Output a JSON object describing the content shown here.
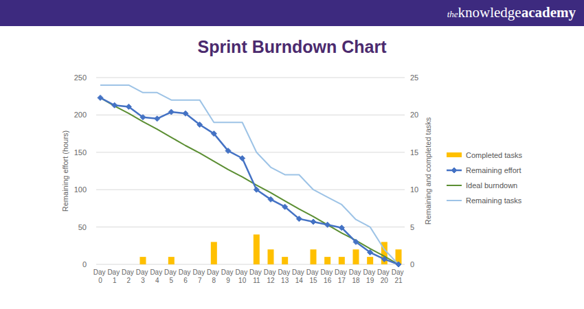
{
  "header": {
    "logo": [
      "the",
      "knowledge",
      "academy"
    ]
  },
  "chart_data": {
    "type": "line",
    "title": "Sprint Burndown Chart",
    "ylabel": "Remaining effort (hours)",
    "y2label": "Remaining and completed tasks",
    "categories": [
      "Day 0",
      "Day 1",
      "Day 2",
      "Day 3",
      "Day 4",
      "Day 5",
      "Day 6",
      "Day 7",
      "Day 8",
      "Day 9",
      "Day 10",
      "Day 11",
      "Day 12",
      "Day 13",
      "Day 14",
      "Day 15",
      "Day 16",
      "Day 17",
      "Day 18",
      "Day 19",
      "Day 20",
      "Day 21"
    ],
    "ylim": [
      0,
      250
    ],
    "yticks": [
      0,
      50,
      100,
      150,
      200,
      250
    ],
    "y2lim": [
      0,
      25
    ],
    "y2ticks": [
      0,
      5,
      10,
      15,
      20,
      25
    ],
    "grid": true,
    "legend": "right",
    "series": [
      {
        "name": "Completed tasks",
        "type": "bar",
        "axis": "y2",
        "color": "#ffc000",
        "values": [
          0,
          0,
          0,
          1,
          0,
          1,
          0,
          0,
          3,
          0,
          0,
          4,
          2,
          1,
          0,
          2,
          1,
          1,
          2,
          1,
          3,
          2
        ]
      },
      {
        "name": "Remaining effort",
        "type": "line",
        "color": "#4472c4",
        "marker": "diamond",
        "line_style": "solid",
        "values": [
          223,
          213,
          211,
          197,
          195,
          204,
          202,
          187,
          175,
          152,
          142,
          100,
          87,
          77,
          61,
          57,
          53,
          49,
          30,
          16,
          7,
          0
        ]
      },
      {
        "name": "Ideal burndown",
        "type": "line",
        "color": "#5b8e32",
        "line_style": "solid",
        "values": [
          223,
          212,
          202,
          191,
          181,
          170,
          159,
          149,
          138,
          127,
          117,
          106,
          96,
          85,
          74,
          64,
          53,
          42,
          32,
          21,
          11,
          0
        ]
      },
      {
        "name": "Remaining tasks",
        "type": "line",
        "axis": "y2",
        "color": "#9dc3e6",
        "line_style": "solid",
        "values": [
          24,
          24,
          24,
          23,
          23,
          22,
          22,
          22,
          19,
          19,
          19,
          15,
          13,
          12,
          12,
          10,
          9,
          8,
          6,
          5,
          2,
          0
        ]
      }
    ]
  }
}
